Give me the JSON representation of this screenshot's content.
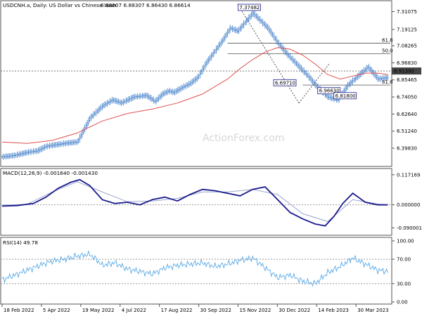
{
  "chart_data": [
    {
      "type": "candlestick",
      "panel": "price",
      "title": "USDCNH.a, Daily: US Dollar vs Chinese Yuan",
      "ohlc_text": "6.88007 6.88307 6.86430 6.86614",
      "watermark": "ActionForex.com",
      "ylim": [
        6.3,
        7.36
      ],
      "y_ticks": [
        "7.31075",
        "7.19125",
        "7.08265",
        "6.96830",
        "6.85465",
        "6.74050",
        "6.62640",
        "6.51240",
        "6.39830"
      ],
      "y_tick_values": [
        7.31075,
        7.19125,
        7.08265,
        6.9683,
        6.85465,
        6.7405,
        6.6264,
        6.5124,
        6.3983
      ],
      "x_ticks": [
        "18 Feb 2022",
        "5 Apr 2022",
        "19 May 2022",
        "4 Jul 2022",
        "17 Aug 2022",
        "30 Sep 2022",
        "15 Nov 2022",
        "30 Dec 2022",
        "14 Feb 2023",
        "30 Mar 2023"
      ],
      "current_price": "6.91390",
      "series": [
        {
          "name": "price",
          "x_index": [
            0,
            10,
            20,
            28,
            35,
            42,
            50,
            60,
            70,
            80,
            88,
            95,
            105,
            115,
            122,
            128,
            133,
            137,
            143,
            150,
            156,
            163,
            170,
            176,
            182,
            188,
            194,
            200,
            206,
            212,
            220,
            228,
            236,
            244,
            252,
            260,
            268,
            276,
            284,
            292,
            300,
            308
          ],
          "close": [
            6.34,
            6.35,
            6.37,
            6.38,
            6.41,
            6.42,
            6.43,
            6.44,
            6.6,
            6.68,
            6.72,
            6.7,
            6.74,
            6.75,
            6.71,
            6.76,
            6.78,
            6.77,
            6.8,
            6.83,
            6.87,
            6.97,
            7.05,
            7.12,
            7.2,
            7.18,
            7.24,
            7.3,
            7.25,
            7.2,
            7.1,
            7.02,
            6.95,
            6.88,
            6.8,
            6.74,
            6.72,
            6.82,
            6.88,
            6.94,
            6.86,
            6.87
          ]
        },
        {
          "name": "moving-average",
          "x_index": [
            0,
            20,
            40,
            60,
            80,
            100,
            120,
            140,
            160,
            180,
            190,
            200,
            210,
            220,
            230,
            240,
            250,
            260,
            270,
            280,
            290,
            300,
            308
          ],
          "values": [
            6.44,
            6.43,
            6.45,
            6.5,
            6.58,
            6.63,
            6.66,
            6.7,
            6.76,
            6.86,
            6.93,
            6.99,
            7.04,
            7.07,
            7.06,
            7.02,
            6.96,
            6.89,
            6.86,
            6.88,
            6.9,
            6.9,
            6.89
          ]
        }
      ],
      "annotations": [
        {
          "label": "7.37482",
          "x_index": 185
        },
        {
          "label": "6.96630",
          "x_index": 261
        },
        {
          "label": "6.69710",
          "x_index": 237
        },
        {
          "label": "6.81800",
          "x_index": 275
        }
      ],
      "fib_levels": [
        {
          "label": "61.8",
          "value": 7.1
        },
        {
          "label": "50.0",
          "value": 7.03
        },
        {
          "label": "61.8",
          "value": 6.82
        }
      ]
    },
    {
      "type": "line",
      "panel": "macd",
      "title": "MACD(12,26,9) -0.001640 -0.001430",
      "ylim": [
        -0.105,
        0.125
      ],
      "y_ticks": [
        "0.117169",
        "0.000000",
        "-0.090001"
      ],
      "y_tick_values": [
        0.117169,
        0.0,
        -0.090001
      ],
      "series": [
        {
          "name": "macd",
          "x_index": [
            0,
            12,
            25,
            35,
            45,
            55,
            62,
            70,
            80,
            90,
            100,
            110,
            120,
            130,
            140,
            150,
            160,
            170,
            180,
            190,
            200,
            210,
            220,
            230,
            240,
            250,
            258,
            265,
            272,
            280,
            290,
            300,
            308
          ],
          "values": [
            -0.005,
            -0.003,
            0.005,
            0.03,
            0.065,
            0.088,
            0.098,
            0.075,
            0.02,
            0.005,
            0.01,
            0.0,
            0.02,
            0.03,
            0.015,
            0.04,
            0.06,
            0.055,
            0.045,
            0.035,
            0.06,
            0.07,
            0.02,
            -0.03,
            -0.055,
            -0.075,
            -0.082,
            -0.045,
            0.005,
            0.045,
            0.01,
            0.0,
            0.0
          ]
        },
        {
          "name": "signal",
          "x_index": [
            0,
            20,
            40,
            60,
            80,
            100,
            120,
            140,
            160,
            180,
            200,
            220,
            240,
            260,
            280,
            300,
            308
          ],
          "values": [
            -0.002,
            0.002,
            0.05,
            0.09,
            0.05,
            0.012,
            0.015,
            0.025,
            0.05,
            0.05,
            0.06,
            0.04,
            -0.035,
            -0.065,
            0.02,
            0.003,
            0.0
          ]
        }
      ]
    },
    {
      "type": "line",
      "panel": "rsi",
      "title": "RSI(14) 49.78",
      "ylim": [
        0,
        100
      ],
      "y_ticks": [
        "100.00",
        "70.00",
        "30.00",
        "0.00"
      ],
      "y_tick_values": [
        100,
        70,
        30,
        0
      ],
      "series": [
        {
          "name": "rsi",
          "x_index": [
            0,
            10,
            20,
            30,
            40,
            50,
            60,
            70,
            75,
            80,
            90,
            100,
            110,
            120,
            130,
            140,
            150,
            160,
            170,
            180,
            190,
            200,
            210,
            220,
            230,
            240,
            250,
            260,
            270,
            280,
            290,
            300,
            308
          ],
          "values": [
            36,
            44,
            52,
            60,
            67,
            70,
            75,
            78,
            70,
            60,
            64,
            54,
            50,
            46,
            56,
            60,
            62,
            64,
            58,
            62,
            68,
            72,
            56,
            40,
            44,
            34,
            30,
            48,
            58,
            72,
            62,
            52,
            50
          ]
        }
      ]
    }
  ],
  "colors": {
    "price": "#2f72c4",
    "moving_average": "#e05050",
    "macd": "#1a1a8c",
    "signal": "#9aa7cf",
    "rsi": "#5aa9e6",
    "border": "#555555",
    "dashed": "#999999"
  }
}
